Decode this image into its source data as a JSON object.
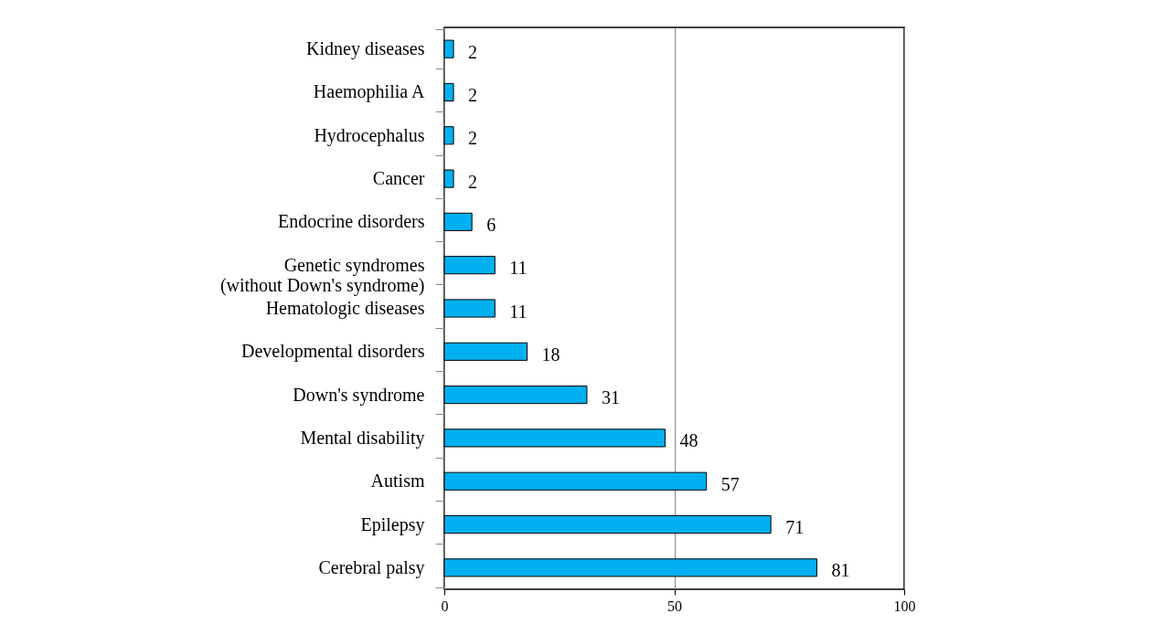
{
  "chart_data": {
    "type": "bar",
    "orientation": "horizontal",
    "categories": [
      "Kidney diseases",
      "Haemophilia A",
      "Hydrocephalus",
      "Cancer",
      "Endocrine disorders",
      "Genetic syndromes\n(without Down's syndrome)",
      "Hematologic diseases",
      "Developmental disorders",
      "Down's syndrome",
      "Mental disability",
      "Autism",
      "Epilepsy",
      "Cerebral palsy"
    ],
    "values": [
      2,
      2,
      2,
      2,
      6,
      11,
      11,
      18,
      31,
      48,
      57,
      71,
      81
    ],
    "color": "#00b0f0",
    "xlim": [
      0,
      100
    ],
    "xticks": [
      0,
      50,
      100
    ],
    "grid": "x",
    "data_labels": true
  }
}
